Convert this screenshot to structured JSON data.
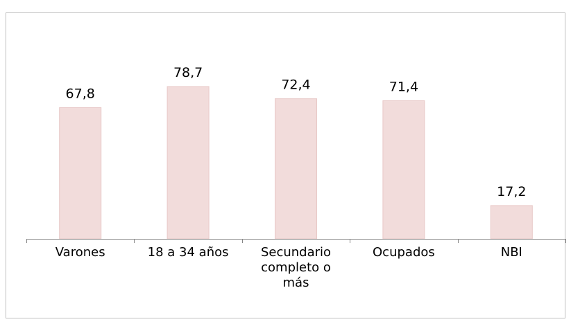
{
  "chart_data": {
    "type": "bar",
    "categories": [
      "Varones",
      "18 a 34 años",
      "Secundario completo o más",
      "Ocupados",
      "NBI"
    ],
    "values": [
      67.8,
      78.7,
      72.4,
      71.4,
      17.2
    ],
    "value_labels": [
      "67,8",
      "78,7",
      "72,4",
      "71,4",
      "17,2"
    ],
    "color": "#f2dcdb"
  }
}
